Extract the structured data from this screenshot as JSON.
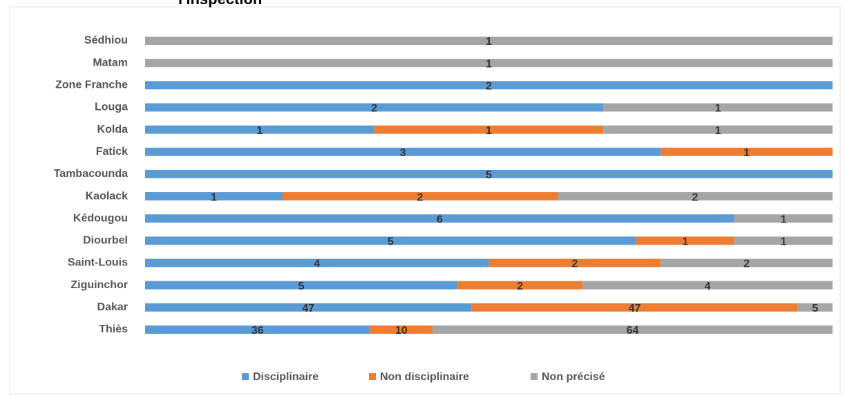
{
  "chart_data": {
    "type": "bar",
    "orientation": "horizontal",
    "stacked": "percent",
    "title": "l'inspection",
    "categories": [
      "Sédhiou",
      "Matam",
      "Zone Franche",
      "Louga",
      "Kolda",
      "Fatick",
      "Tambacounda",
      "Kaolack",
      "Kédougou",
      "Diourbel",
      "Saint-Louis",
      "Ziguinchor",
      "Dakar",
      "Thiès"
    ],
    "series": [
      {
        "name": "Disciplinaire",
        "color": "#5b9bd5",
        "values": [
          0,
          0,
          2,
          2,
          1,
          3,
          5,
          1,
          6,
          5,
          4,
          5,
          47,
          36
        ]
      },
      {
        "name": "Non disciplinaire",
        "color": "#ed7d31",
        "values": [
          0,
          0,
          0,
          0,
          1,
          1,
          0,
          2,
          0,
          1,
          2,
          2,
          47,
          10
        ]
      },
      {
        "name": "Non précisé",
        "color": "#a5a5a5",
        "values": [
          1,
          1,
          0,
          1,
          1,
          0,
          0,
          2,
          1,
          1,
          2,
          4,
          5,
          64
        ]
      }
    ],
    "legend": "bottom"
  }
}
